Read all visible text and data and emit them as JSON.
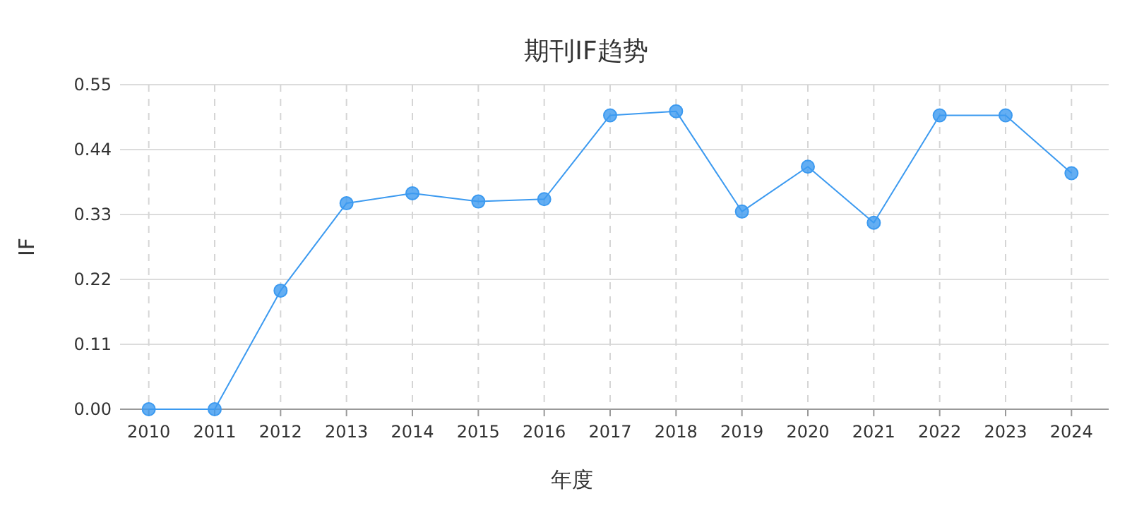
{
  "chart_data": {
    "type": "line",
    "title": "期刊IF趋势",
    "xlabel": "年度",
    "ylabel": "IF",
    "categories": [
      "2010",
      "2011",
      "2012",
      "2013",
      "2014",
      "2015",
      "2016",
      "2017",
      "2018",
      "2019",
      "2020",
      "2021",
      "2022",
      "2023",
      "2024"
    ],
    "series": [
      {
        "color": "#3c9af0",
        "values": [
          0,
          0,
          0.201,
          0.349,
          0.366,
          0.352,
          0.356,
          0.498,
          0.505,
          0.335,
          0.411,
          0.316,
          0.498,
          0.498,
          0.4
        ]
      }
    ],
    "ylim": [
      0,
      0.55
    ],
    "yticks": [
      {
        "value": 0,
        "label": "0.00"
      },
      0.11,
      0.22,
      0.33,
      0.44,
      0.55
    ],
    "grid": true,
    "marker": "circle",
    "line_style": "solid"
  }
}
